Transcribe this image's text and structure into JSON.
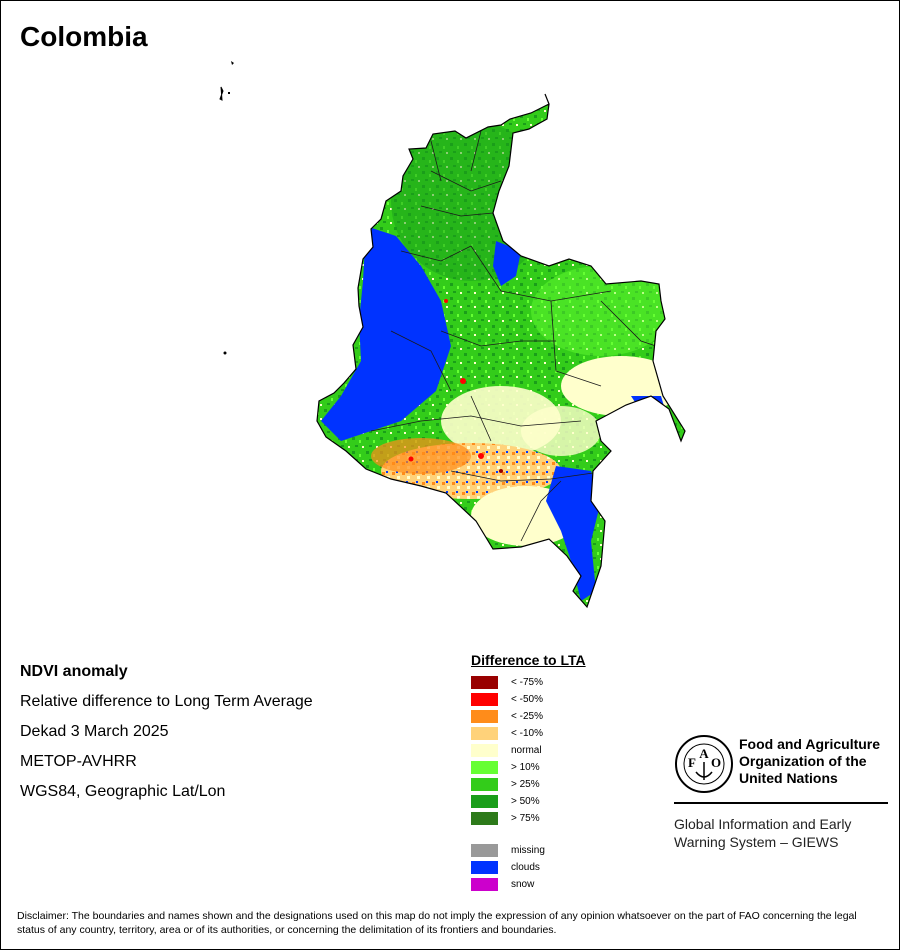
{
  "title": "Colombia",
  "info": {
    "heading": "NDVI anomaly",
    "line1": "Relative difference to Long Term Average",
    "line2": "Dekad 3 March 2025",
    "line3": "METOP-AVHRR",
    "line4": "WGS84, Geographic Lat/Lon"
  },
  "legend": {
    "title": "Difference to LTA",
    "classes": [
      {
        "label": "< -75%",
        "color": "#990000"
      },
      {
        "label": "< -50%",
        "color": "#ff0000"
      },
      {
        "label": "< -25%",
        "color": "#ff8c1a"
      },
      {
        "label": "< -10%",
        "color": "#ffd27a"
      },
      {
        "label": "normal",
        "color": "#ffffcc"
      },
      {
        "label": "> 10%",
        "color": "#66ff33"
      },
      {
        "label": "> 25%",
        "color": "#33cc1a"
      },
      {
        "label": "> 50%",
        "color": "#1a9e1a"
      },
      {
        "label": "> 75%",
        "color": "#2d7a1a"
      }
    ],
    "extra": [
      {
        "label": "missing",
        "color": "#999999"
      },
      {
        "label": "clouds",
        "color": "#0033ff"
      },
      {
        "label": "snow",
        "color": "#cc00cc"
      }
    ]
  },
  "org": {
    "name_line1": "Food and Agriculture",
    "name_line2": "Organization of the",
    "name_line3": "United Nations",
    "system_line1": "Global Information and Early",
    "system_line2": "Warning System – GIEWS",
    "logo_letters": {
      "f": "F",
      "a1": "A",
      "o": "O"
    }
  },
  "disclaimer": "Disclaimer: The boundaries and names shown and the designations used on this map do not imply the expression of any opinion whatsoever on the part of FAO concerning the legal status of any country, territory, area or of its authorities, or concerning the delimitation of its frontiers and boundaries."
}
